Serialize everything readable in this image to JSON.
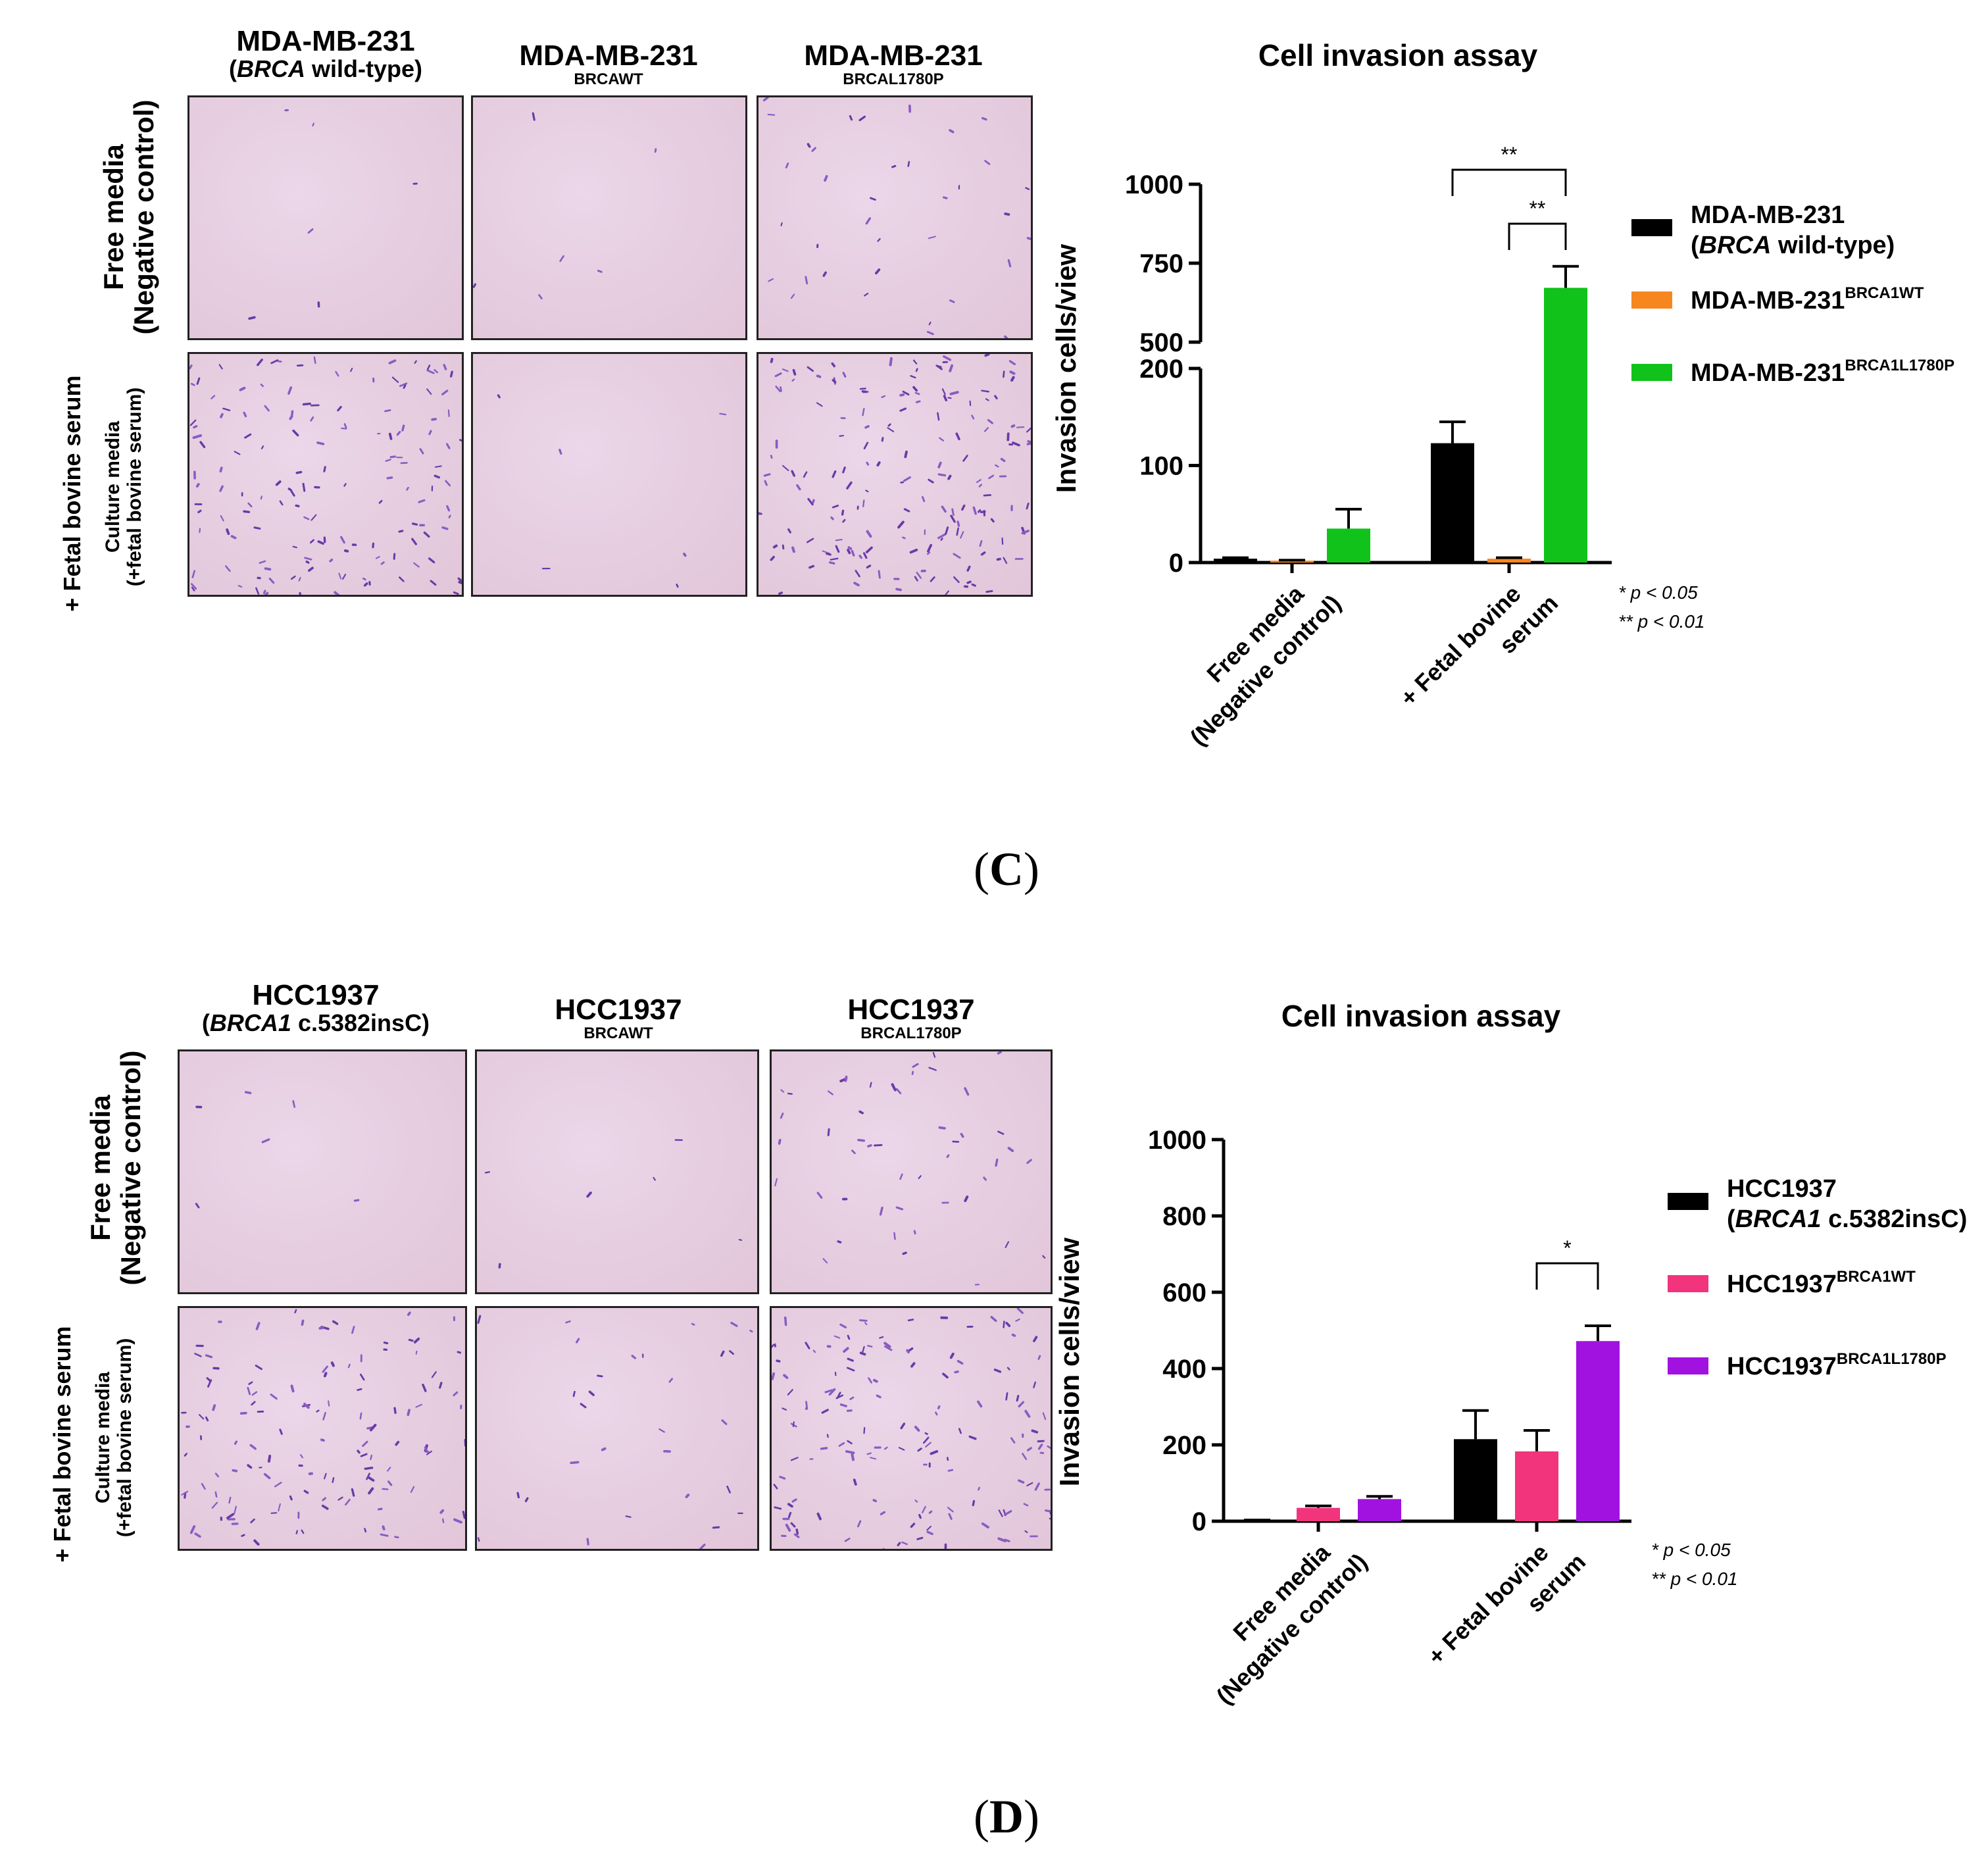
{
  "panels": [
    {
      "letter": "C",
      "columns": [
        {
          "main": "MDA-MB-231",
          "sub_italic": "BRCA",
          "sub_rest": " wild-type)",
          "sub_open": "("
        },
        {
          "main": "MDA-MB-231",
          "sub": "BRCAWT"
        },
        {
          "main": "MDA-MB-231",
          "sub": "BRCAL1780P"
        }
      ],
      "row_labels": [
        {
          "line1": "Free media",
          "line2": "(Negative control)"
        },
        {
          "outer": "+ Fetal bovine serum",
          "line1": "Culture media",
          "line2": "(+fetal bovine serum)"
        }
      ],
      "cell_density": [
        [
          0.1,
          0.1,
          0.6
        ],
        [
          2.5,
          0.1,
          3.0
        ]
      ],
      "legend": [
        {
          "line1": "MDA-MB-231",
          "line2_open": "(",
          "line2_italic": "BRCA",
          "line2_rest": " wild-type)",
          "color": "#000000"
        },
        {
          "base": "MDA-MB-231",
          "sup": "BRCA1WT",
          "color": "#f7861f"
        },
        {
          "base": "MDA-MB-231",
          "sup": "BRCA1L1780P",
          "color": "#11c21a"
        }
      ]
    },
    {
      "letter": "D",
      "columns": [
        {
          "main": "HCC1937",
          "sub_italic": "BRCA1",
          "sub_rest": " c.5382insC)",
          "sub_open": "("
        },
        {
          "main": "HCC1937",
          "sub": "BRCAWT"
        },
        {
          "main": "HCC1937",
          "sub": "BRCAL1780P"
        }
      ],
      "row_labels": [
        {
          "line1": "Free media",
          "line2": "(Negative control)"
        },
        {
          "outer": "+ Fetal bovine serum",
          "line1": "Culture media",
          "line2": "(+fetal bovine serum)"
        }
      ],
      "cell_density": [
        [
          0.1,
          0.1,
          0.8
        ],
        [
          2.2,
          0.5,
          2.6
        ]
      ],
      "legend": [
        {
          "line1": "HCC1937",
          "line2_open": "(",
          "line2_italic": "BRCA1",
          "line2_rest": " c.5382insC)",
          "color": "#000000"
        },
        {
          "base": "HCC1937",
          "sup": "BRCA1WT",
          "color": "#f2347c"
        },
        {
          "base": "HCC1937",
          "sup": "BRCA1L1780P",
          "color": "#a112e0"
        }
      ]
    }
  ],
  "pvalue_notes": [
    "* p < 0.05",
    "** p < 0.01"
  ],
  "chart_data": [
    {
      "type": "bar",
      "title": "Cell invasion assay",
      "ylabel": "Invasion cells/view",
      "categories": [
        "Free media (Negative control)",
        "+ Fetal bovine serum"
      ],
      "category_lines": [
        [
          "Free media",
          "(Negative control)"
        ],
        [
          "+ Fetal bovine",
          "serum"
        ]
      ],
      "broken_axis": true,
      "ylim_lower": [
        0,
        200
      ],
      "ylim_upper": [
        500,
        1000
      ],
      "yticks_lower": [
        0,
        100,
        200
      ],
      "yticks_upper": [
        500,
        750,
        1000
      ],
      "series": [
        {
          "name": "MDA-MB-231 (BRCA wild-type)",
          "values": [
            4,
            123
          ],
          "errors": [
            1,
            22
          ],
          "color": "#000000"
        },
        {
          "name": "MDA-MB-231 BRCA1WT",
          "values": [
            2,
            4
          ],
          "errors": [
            0.5,
            1
          ],
          "color": "#f7861f"
        },
        {
          "name": "MDA-MB-231 BRCA1L1780P",
          "values": [
            35,
            672
          ],
          "errors": [
            20,
            68
          ],
          "color": "#11c21a"
        }
      ],
      "significance": [
        {
          "label": "**",
          "from_series": 0,
          "to_series": 2,
          "category": 1
        },
        {
          "label": "**",
          "from_series": 1,
          "to_series": 2,
          "category": 1
        }
      ]
    },
    {
      "type": "bar",
      "title": "Cell invasion assay",
      "ylabel": "Invasion cells/view",
      "categories": [
        "Free media (Negative control)",
        "+ Fetal bovine serum"
      ],
      "category_lines": [
        [
          "Free media",
          "(Negative control)"
        ],
        [
          "+ Fetal bovine",
          "serum"
        ]
      ],
      "broken_axis": false,
      "ylim": [
        0,
        1000
      ],
      "yticks": [
        0,
        200,
        400,
        600,
        800,
        1000
      ],
      "series": [
        {
          "name": "HCC1937 (BRCA1 c.5382insC)",
          "values": [
            2,
            215
          ],
          "errors": [
            1,
            75
          ],
          "color": "#000000"
        },
        {
          "name": "HCC1937 BRCA1WT",
          "values": [
            35,
            183
          ],
          "errors": [
            5,
            55
          ],
          "color": "#f2347c"
        },
        {
          "name": "HCC1937 BRCA1L1780P",
          "values": [
            58,
            472
          ],
          "errors": [
            7,
            40
          ],
          "color": "#a112e0"
        }
      ],
      "significance": [
        {
          "label": "*",
          "from_series": 1,
          "to_series": 2,
          "category": 1
        }
      ]
    }
  ]
}
